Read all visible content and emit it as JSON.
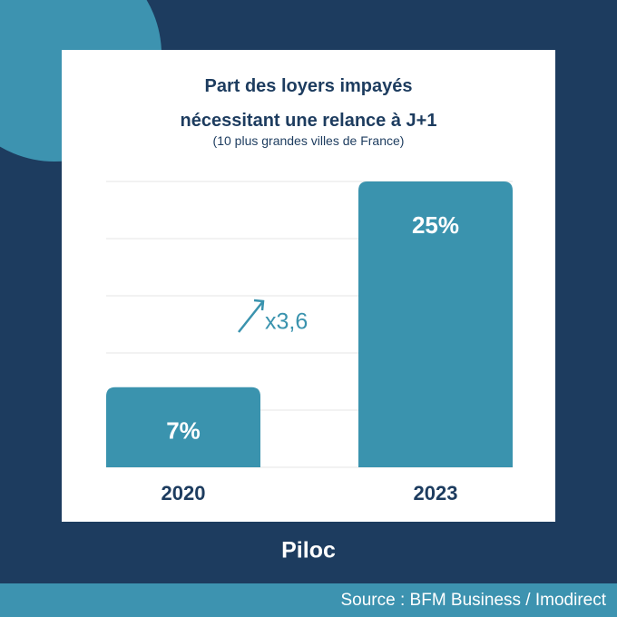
{
  "chart_data": {
    "type": "bar",
    "title": "Part des loyers impayés nécessitant une relance à J+1",
    "subtitle": "(10 plus grandes villes de France)",
    "categories": [
      "2020",
      "2023"
    ],
    "values": [
      7,
      25
    ],
    "value_labels": [
      "7%",
      "25%"
    ],
    "color": "#3a93ae",
    "ylim": [
      0,
      25
    ],
    "yticks": [
      0,
      5,
      10,
      15,
      20,
      25
    ],
    "grid": true,
    "annotation": "x3,6"
  },
  "brand": "Piloc",
  "source": "Source : BFM Business / Imodirect"
}
